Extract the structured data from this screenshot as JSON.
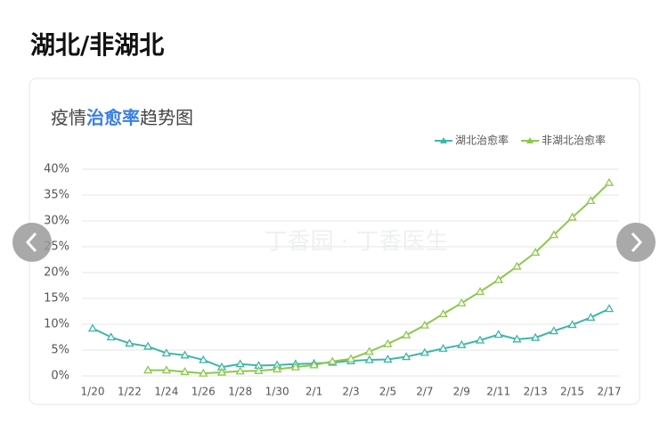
{
  "header": {
    "title": "湖北/非湖北"
  },
  "chart_data": {
    "type": "line",
    "title": [
      "疫情",
      "治愈率",
      "趋势图"
    ],
    "watermark": "丁香园 · 丁香医生",
    "categories": [
      "1/20",
      null,
      "1/22",
      null,
      "1/24",
      null,
      "1/26",
      null,
      "1/28",
      null,
      "1/30",
      null,
      "2/1",
      null,
      "2/3",
      null,
      "2/5",
      null,
      "2/7",
      null,
      "2/9",
      null,
      "2/11",
      null,
      "2/13",
      null,
      "2/15",
      null,
      "2/17"
    ],
    "series": [
      {
        "name": "湖北治愈率",
        "color": "#3db5a9",
        "values": [
          9.2,
          7.5,
          6.3,
          5.7,
          4.4,
          4.0,
          3.1,
          1.7,
          2.3,
          2.0,
          2.1,
          2.3,
          2.4,
          2.6,
          2.9,
          3.1,
          3.2,
          3.7,
          4.5,
          5.3,
          6.0,
          6.9,
          8.0,
          7.1,
          7.4,
          8.7,
          9.9,
          11.3,
          13.0
        ]
      },
      {
        "name": "非湖北治愈率",
        "color": "#8cc84b",
        "values": [
          null,
          null,
          null,
          1.1,
          1.1,
          0.8,
          0.5,
          0.7,
          0.9,
          1.0,
          1.3,
          1.7,
          2.1,
          2.8,
          3.3,
          4.7,
          6.2,
          7.9,
          9.8,
          12.0,
          14.1,
          16.3,
          18.6,
          21.2,
          23.9,
          27.3,
          30.7,
          33.9,
          37.4
        ]
      }
    ],
    "ylim": [
      0,
      40
    ],
    "yticks": [
      {
        "value": 0,
        "label": "0%"
      },
      {
        "value": 5,
        "label": "5%"
      },
      {
        "value": 10,
        "label": "10%"
      },
      {
        "value": 15,
        "label": "15%"
      },
      {
        "value": 20,
        "label": "20%"
      },
      {
        "value": 25,
        "label": "25%"
      },
      {
        "value": 30,
        "label": "30%"
      },
      {
        "value": 35,
        "label": "35%"
      },
      {
        "value": 40,
        "label": "40%"
      }
    ],
    "grid": true
  }
}
